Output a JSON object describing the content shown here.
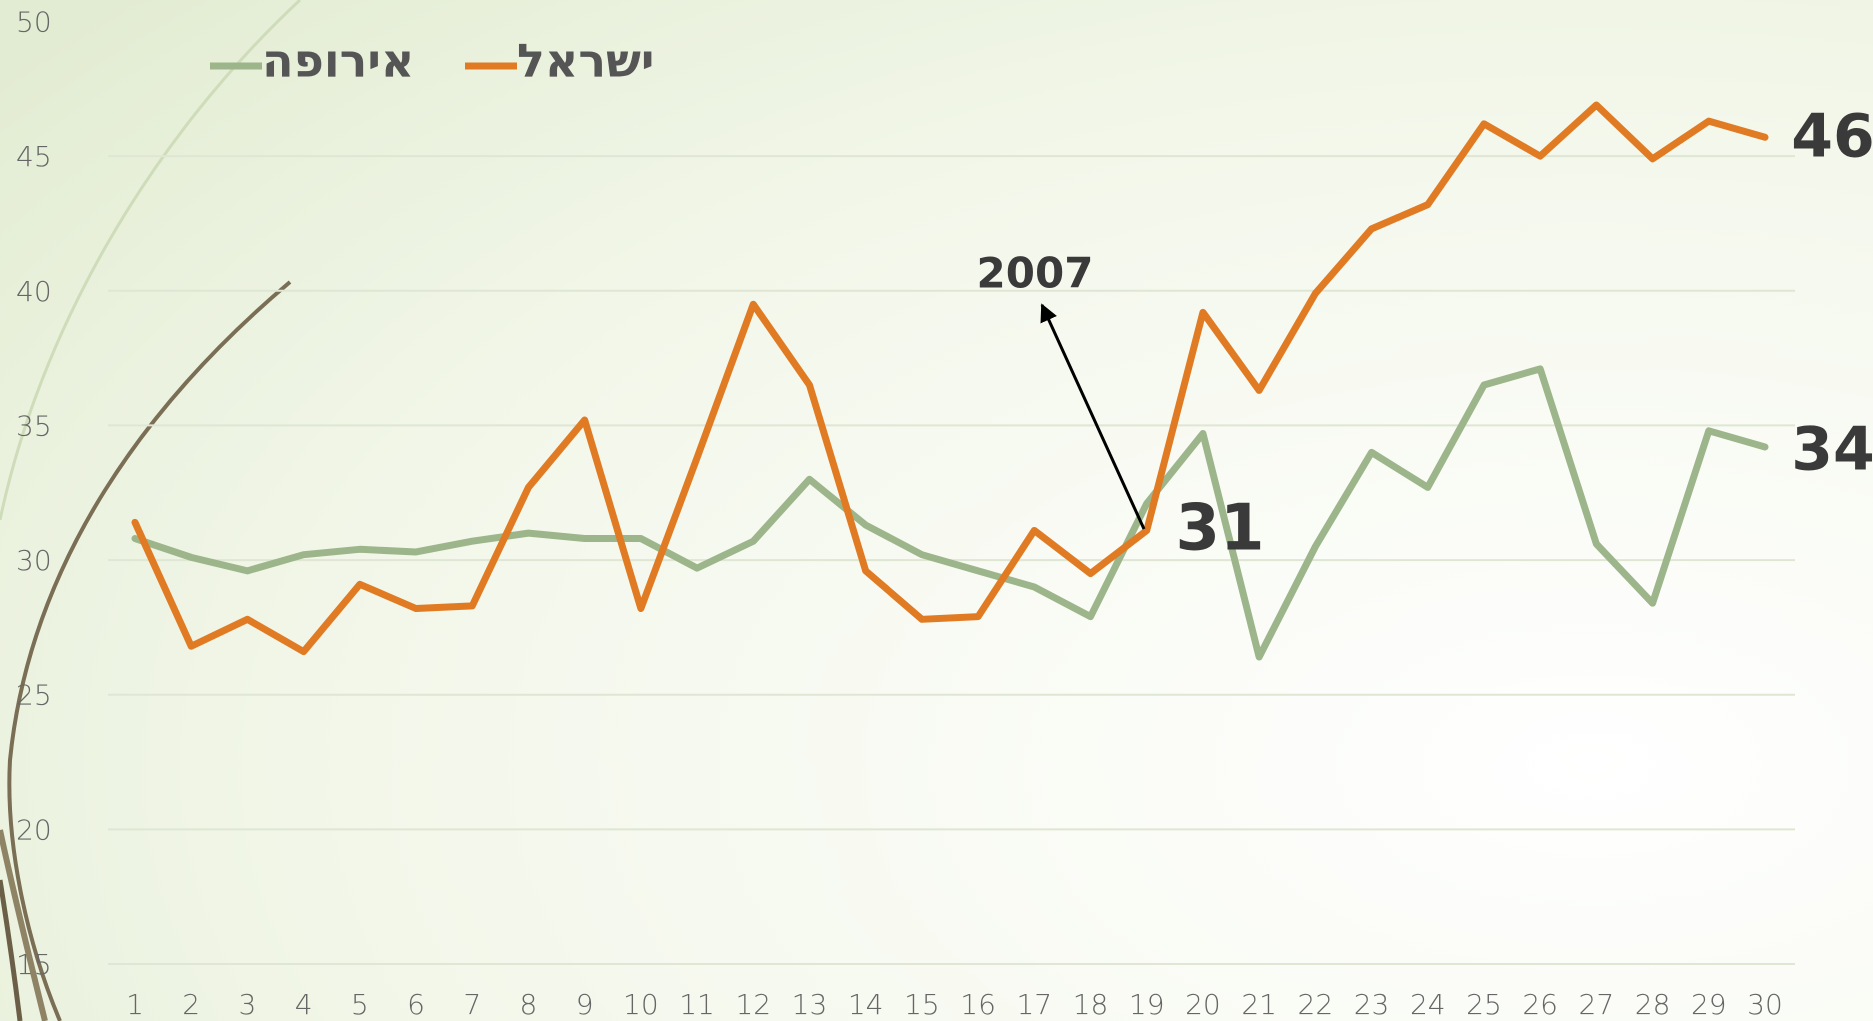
{
  "chart_data": {
    "type": "line",
    "categories": [
      1,
      2,
      3,
      4,
      5,
      6,
      7,
      8,
      9,
      10,
      11,
      12,
      13,
      14,
      15,
      16,
      17,
      18,
      19,
      20,
      21,
      22,
      23,
      24,
      25,
      26,
      27,
      28,
      29,
      30
    ],
    "series": [
      {
        "name": "אירופה",
        "color": "#9db58a",
        "values": [
          30.8,
          30.1,
          29.6,
          30.2,
          30.4,
          30.3,
          30.7,
          31.0,
          30.8,
          30.8,
          29.7,
          30.7,
          33.0,
          31.3,
          30.2,
          29.6,
          29.0,
          27.9,
          32.1,
          34.7,
          26.4,
          30.5,
          34.0,
          32.7,
          36.5,
          37.1,
          30.6,
          28.4,
          34.8,
          34.2
        ]
      },
      {
        "name": "ישראל",
        "color": "#e07b24",
        "values": [
          31.4,
          26.8,
          27.8,
          26.6,
          29.1,
          28.2,
          28.3,
          32.7,
          35.2,
          28.2,
          33.8,
          39.5,
          36.5,
          29.6,
          27.8,
          27.9,
          31.1,
          29.5,
          31.1,
          39.2,
          36.3,
          39.9,
          42.3,
          43.2,
          46.2,
          45.0,
          46.9,
          44.9,
          46.3,
          45.7
        ]
      }
    ],
    "ylim": [
      15,
      50
    ],
    "yticks": [
      15,
      20,
      25,
      30,
      35,
      40,
      45,
      50
    ],
    "grid": true,
    "annotations": [
      "2007",
      "31",
      "46",
      "34"
    ]
  }
}
